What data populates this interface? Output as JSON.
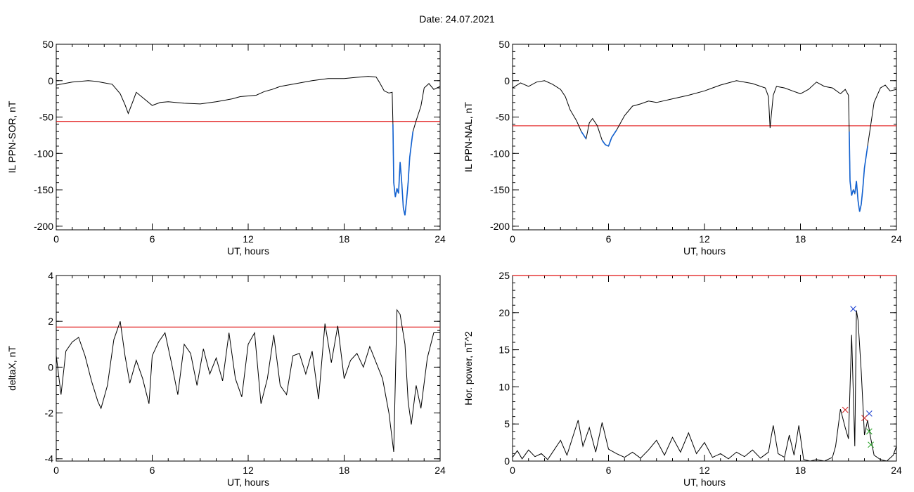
{
  "page": {
    "title": "Date:  24.07.2021"
  },
  "chart_data": [
    {
      "id": "sor",
      "type": "line",
      "xlabel": "UT, hours",
      "ylabel": "IL PPN-SOR, nT",
      "xlim": [
        0,
        24
      ],
      "ylim": [
        -205,
        50
      ],
      "xticks": [
        "0",
        "6",
        "12",
        "18",
        "24"
      ],
      "yticks": [
        "-200",
        "-150",
        "-100",
        "-50",
        "0",
        "50"
      ],
      "threshold": -56,
      "threshold_color": "#e01010",
      "line_color": "#000000",
      "highlight_color": "#1060d0",
      "series": [
        {
          "x": [
            0,
            0.5,
            1,
            1.5,
            2,
            2.5,
            3,
            3.5,
            4,
            4.3,
            4.5,
            4.8,
            5,
            5.5,
            6,
            6.5,
            7,
            8,
            9,
            10,
            10.5,
            11,
            11.5,
            12,
            12.5,
            13,
            13.5,
            14,
            15,
            16,
            17,
            18,
            18.5,
            19,
            19.5,
            20,
            20.2,
            20.5,
            20.8,
            21,
            21.05,
            21.1,
            21.2,
            21.3,
            21.4,
            21.5,
            21.6,
            21.7,
            21.8,
            21.9,
            22,
            22.1,
            22.3,
            22.5,
            22.8,
            23,
            23.3,
            23.6,
            24
          ],
          "y": [
            -6,
            -4,
            -2,
            -1,
            0,
            -1,
            -3,
            -5,
            -18,
            -33,
            -45,
            -28,
            -16,
            -25,
            -34,
            -30,
            -29,
            -31,
            -32,
            -29,
            -27,
            -25,
            -22,
            -21,
            -20,
            -15,
            -12,
            -8,
            -4,
            0,
            3,
            3,
            4,
            5,
            6,
            5,
            -2,
            -14,
            -17,
            -16,
            -60,
            -140,
            -160,
            -148,
            -155,
            -112,
            -140,
            -175,
            -185,
            -165,
            -140,
            -105,
            -70,
            -55,
            -35,
            -10,
            -4,
            -12,
            -8
          ]
        }
      ]
    },
    {
      "id": "nal",
      "type": "line",
      "xlabel": "UT, hours",
      "ylabel": "IL PPN-NAL, nT",
      "xlim": [
        0,
        24
      ],
      "ylim": [
        -205,
        50
      ],
      "xticks": [
        "0",
        "6",
        "12",
        "18",
        "24"
      ],
      "yticks": [
        "-200",
        "-150",
        "-100",
        "-50",
        "0",
        "50"
      ],
      "threshold": -62,
      "threshold_color": "#e01010",
      "line_color": "#000000",
      "highlight_color": "#1060d0",
      "series": [
        {
          "x": [
            0,
            0.5,
            1,
            1.5,
            2,
            2.5,
            3,
            3.3,
            3.6,
            4,
            4.3,
            4.6,
            4.8,
            5,
            5.3,
            5.6,
            5.8,
            6,
            6.2,
            6.5,
            7,
            7.5,
            8,
            8.5,
            9,
            10,
            11,
            12,
            13,
            14,
            15,
            15.8,
            16,
            16.1,
            16.3,
            16.5,
            17,
            17.5,
            18,
            18.5,
            19,
            19.5,
            20,
            20.5,
            20.8,
            21,
            21.05,
            21.1,
            21.2,
            21.3,
            21.4,
            21.5,
            21.6,
            21.7,
            21.8,
            21.9,
            22,
            22.2,
            22.4,
            22.6,
            23,
            23.3,
            23.6,
            24
          ],
          "y": [
            -10,
            -3,
            -8,
            -2,
            0,
            -5,
            -12,
            -22,
            -40,
            -55,
            -70,
            -80,
            -58,
            -52,
            -62,
            -82,
            -88,
            -90,
            -78,
            -68,
            -48,
            -35,
            -32,
            -28,
            -30,
            -25,
            -20,
            -14,
            -6,
            0,
            -4,
            -10,
            -22,
            -65,
            -20,
            -8,
            -10,
            -14,
            -18,
            -12,
            -2,
            -8,
            -10,
            -18,
            -12,
            -20,
            -70,
            -138,
            -158,
            -150,
            -155,
            -138,
            -165,
            -180,
            -170,
            -148,
            -120,
            -90,
            -60,
            -30,
            -10,
            -6,
            -14,
            -12
          ]
        }
      ]
    },
    {
      "id": "deltax",
      "type": "line",
      "xlabel": "UT, hours",
      "ylabel": "deltaX, nT",
      "xlim": [
        0,
        24
      ],
      "ylim": [
        -4.1,
        4
      ],
      "xticks": [
        "0",
        "6",
        "12",
        "18",
        "24"
      ],
      "yticks": [
        "-4",
        "-2",
        "0",
        "2",
        "4"
      ],
      "threshold": 1.75,
      "threshold_color": "#e01010",
      "line_color": "#000000",
      "series": [
        {
          "x": [
            0,
            0.3,
            0.6,
            1,
            1.4,
            1.8,
            2.2,
            2.6,
            2.8,
            3.2,
            3.6,
            4,
            4.3,
            4.6,
            5,
            5.4,
            5.8,
            6,
            6.4,
            6.8,
            7.2,
            7.6,
            8,
            8.4,
            8.8,
            9.2,
            9.6,
            10,
            10.4,
            10.8,
            11.2,
            11.6,
            12,
            12.4,
            12.8,
            13.2,
            13.6,
            14,
            14.4,
            14.8,
            15.2,
            15.6,
            16,
            16.4,
            16.8,
            17.2,
            17.6,
            18,
            18.4,
            18.8,
            19.2,
            19.6,
            20,
            20.4,
            20.8,
            21.1,
            21.3,
            21.5,
            21.8,
            22,
            22.2,
            22.5,
            22.8,
            23.2,
            23.6,
            24
          ],
          "y": [
            0.5,
            -1.2,
            0.7,
            1.1,
            1.3,
            0.5,
            -0.6,
            -1.5,
            -1.8,
            -0.8,
            1.2,
            2.0,
            0.5,
            -0.7,
            0.3,
            -0.5,
            -1.6,
            0.5,
            1.1,
            1.5,
            0.2,
            -1.2,
            1.0,
            0.6,
            -0.8,
            0.8,
            -0.3,
            0.4,
            -0.6,
            1.5,
            -0.5,
            -1.3,
            1.0,
            1.5,
            -1.6,
            -0.5,
            1.4,
            -0.8,
            -1.2,
            0.5,
            0.6,
            -0.3,
            0.7,
            -1.4,
            1.9,
            0.2,
            1.8,
            -0.5,
            0.3,
            0.6,
            0.0,
            0.9,
            0.2,
            -0.5,
            -2.0,
            -3.7,
            2.5,
            2.3,
            1.0,
            -1.5,
            -2.5,
            -0.8,
            -1.8,
            0.4,
            1.5,
            1.5
          ]
        }
      ]
    },
    {
      "id": "power",
      "type": "line",
      "xlabel": "UT, hours",
      "ylabel": "Hor. power, nT^2",
      "xlim": [
        0,
        24
      ],
      "ylim": [
        0,
        25
      ],
      "xticks": [
        "0",
        "6",
        "12",
        "18",
        "24"
      ],
      "yticks": [
        "0",
        "5",
        "10",
        "15",
        "20",
        "25"
      ],
      "threshold": 25,
      "threshold_color": "#e01010",
      "line_color": "#000000",
      "series": [
        {
          "x": [
            0,
            0.3,
            0.6,
            1,
            1.4,
            1.8,
            2.2,
            2.6,
            3,
            3.4,
            3.8,
            4.1,
            4.4,
            4.8,
            5.2,
            5.6,
            6,
            6.5,
            7,
            7.5,
            8,
            8.5,
            9,
            9.5,
            10,
            10.5,
            11,
            11.5,
            12,
            12.5,
            13,
            13.5,
            14,
            14.5,
            15,
            15.5,
            16,
            16.3,
            16.6,
            17,
            17.3,
            17.6,
            17.9,
            18.2,
            18.6,
            19,
            19.5,
            20,
            20.2,
            20.5,
            20.8,
            21,
            21.2,
            21.4,
            21.5,
            21.6,
            21.8,
            22,
            22.2,
            22.4,
            22.6,
            23,
            23.4,
            23.8,
            24
          ],
          "y": [
            0.5,
            1.4,
            0.3,
            1.5,
            0.6,
            1.0,
            0.2,
            1.5,
            2.8,
            0.8,
            3.5,
            5.5,
            2.0,
            4.5,
            1.2,
            5.2,
            1.6,
            1.0,
            0.5,
            1.2,
            0.4,
            1.5,
            2.8,
            0.8,
            3.2,
            1.2,
            3.8,
            1.0,
            2.5,
            0.5,
            1.0,
            0.3,
            1.2,
            0.6,
            1.5,
            0.4,
            1.2,
            4.8,
            1.0,
            0.5,
            3.5,
            0.8,
            4.8,
            0.2,
            0.0,
            0.2,
            0.0,
            0.5,
            2.0,
            7.0,
            4.5,
            3.0,
            17.0,
            2.0,
            20.3,
            19.0,
            12.0,
            3.5,
            5.5,
            3.0,
            0.8,
            0.2,
            0.0,
            0.8,
            2.0
          ]
        }
      ],
      "markers": [
        {
          "x": 21.3,
          "y": 20.5,
          "color": "#1a3fd0"
        },
        {
          "x": 22.3,
          "y": 6.4,
          "color": "#1a3fd0"
        },
        {
          "x": 22.0,
          "y": 5.8,
          "color": "#d02020"
        },
        {
          "x": 20.8,
          "y": 6.9,
          "color": "#d02020"
        },
        {
          "x": 22.3,
          "y": 4.0,
          "color": "#20a020"
        },
        {
          "x": 22.4,
          "y": 2.2,
          "color": "#20a020"
        }
      ]
    }
  ]
}
